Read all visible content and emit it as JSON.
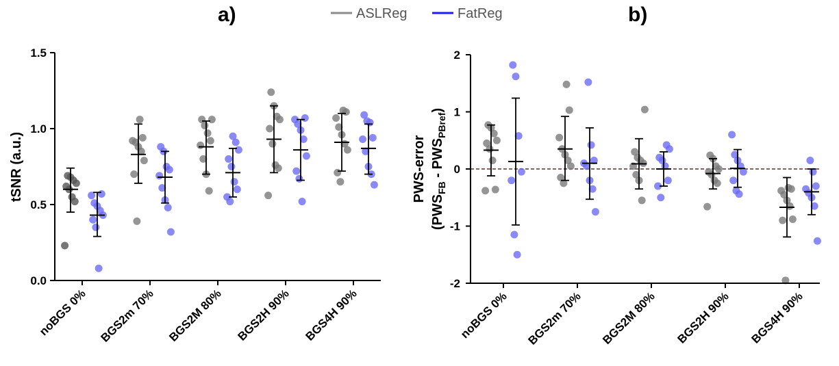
{
  "legend": {
    "items": [
      {
        "label": "ASLReg",
        "color": "#8a8a8a"
      },
      {
        "label": "FatReg",
        "color": "#1a1aff"
      }
    ]
  },
  "colors": {
    "asl_point": "#7a7a7a",
    "fat_point": "#6b6bf5",
    "asl_early_point": "#555555",
    "errorbar": "#000000",
    "zero_line": "#7a1f1f"
  },
  "chart_data": [
    {
      "panel_label": "a)",
      "type": "scatter",
      "ylabel": "tSNR (a.u.)",
      "ylim": [
        0.0,
        1.5
      ],
      "yticks": [
        0.0,
        0.5,
        1.0,
        1.5
      ],
      "ytick_labels": [
        "0.0",
        "0.5",
        "1.0",
        "1.5"
      ],
      "categories": [
        "noBGS  0%",
        "BGS2m  70%",
        "BGS2M  80%",
        "BGS2H  90%",
        "BGS4H  90%"
      ],
      "series": [
        {
          "name": "ASLReg",
          "groups": [
            {
              "points": [
                0.23,
                0.52,
                0.55,
                0.6,
                0.62,
                0.64,
                0.66,
                0.68,
                0.69
              ],
              "mean": 0.6,
              "sd_low": 0.45,
              "sd_high": 0.74
            },
            {
              "points": [
                0.39,
                0.7,
                0.79,
                0.85,
                0.88,
                0.91,
                0.92,
                0.94,
                1.06
              ],
              "mean": 0.83,
              "sd_low": 0.64,
              "sd_high": 1.03
            },
            {
              "points": [
                0.59,
                0.7,
                0.8,
                0.89,
                0.92,
                0.97,
                1.02,
                1.06,
                1.06
              ],
              "mean": 0.88,
              "sd_low": 0.7,
              "sd_high": 1.05
            },
            {
              "points": [
                0.56,
                0.74,
                0.76,
                0.9,
                1.0,
                1.06,
                1.08,
                1.15,
                1.24
              ],
              "mean": 0.93,
              "sd_low": 0.71,
              "sd_high": 1.15
            },
            {
              "points": [
                0.65,
                0.71,
                0.86,
                0.9,
                0.96,
                1.01,
                1.07,
                1.11,
                1.12
              ],
              "mean": 0.91,
              "sd_low": 0.72,
              "sd_high": 1.1
            }
          ]
        },
        {
          "name": "FatReg",
          "groups": [
            {
              "points": [
                0.08,
                0.35,
                0.4,
                0.43,
                0.46,
                0.49,
                0.51,
                0.56,
                0.57
              ],
              "mean": 0.43,
              "sd_low": 0.29,
              "sd_high": 0.58
            },
            {
              "points": [
                0.32,
                0.48,
                0.53,
                0.61,
                0.69,
                0.73,
                0.75,
                0.85,
                0.88
              ],
              "mean": 0.68,
              "sd_low": 0.51,
              "sd_high": 0.85
            },
            {
              "points": [
                0.52,
                0.55,
                0.6,
                0.65,
                0.75,
                0.8,
                0.86,
                0.91,
                0.95
              ],
              "mean": 0.71,
              "sd_low": 0.55,
              "sd_high": 0.87
            },
            {
              "points": [
                0.52,
                0.67,
                0.72,
                0.82,
                0.93,
                0.99,
                1.03,
                1.06,
                1.07
              ],
              "mean": 0.86,
              "sd_low": 0.66,
              "sd_high": 1.06
            },
            {
              "points": [
                0.63,
                0.7,
                0.75,
                0.85,
                0.93,
                0.94,
                1.04,
                1.05,
                1.09
              ],
              "mean": 0.87,
              "sd_low": 0.7,
              "sd_high": 1.03
            }
          ]
        }
      ]
    },
    {
      "panel_label": "b)",
      "type": "scatter",
      "ylabel": "PWS-error",
      "ylabel2_prefix": "(PWS",
      "ylabel2_sub1": "FB",
      "ylabel2_mid": " - PWS",
      "ylabel2_sub2": "PBref",
      "ylabel2_suffix": ")",
      "ylim": [
        -2,
        2
      ],
      "yticks": [
        -2,
        -1,
        0,
        1,
        2
      ],
      "ytick_labels": [
        "-2",
        "-1",
        "0",
        "1",
        "2"
      ],
      "reference_line": 0,
      "categories": [
        "noBGS 0%",
        "BGS2m 70%",
        "BGS2M 80%",
        "BGS2H 90%",
        "BGS4H 90%"
      ],
      "series": [
        {
          "name": "ASLReg",
          "groups": [
            {
              "points": [
                -0.38,
                -0.36,
                0.15,
                0.35,
                0.45,
                0.5,
                0.62,
                0.72,
                0.77
              ],
              "mean": 0.33,
              "sd_low": -0.12,
              "sd_high": 0.77
            },
            {
              "points": [
                -0.25,
                -0.15,
                0.05,
                0.15,
                0.25,
                0.35,
                0.55,
                1.03,
                1.48
              ],
              "mean": 0.35,
              "sd_low": -0.2,
              "sd_high": 0.92
            },
            {
              "points": [
                -0.55,
                -0.2,
                -0.1,
                0.05,
                0.1,
                0.15,
                0.2,
                0.3,
                1.04
              ],
              "mean": 0.09,
              "sd_low": -0.35,
              "sd_high": 0.53
            },
            {
              "points": [
                -0.66,
                -0.25,
                -0.2,
                -0.1,
                -0.05,
                0.0,
                0.05,
                0.18,
                0.24
              ],
              "mean": -0.08,
              "sd_low": -0.35,
              "sd_high": 0.18
            },
            {
              "points": [
                -1.95,
                -0.9,
                -0.88,
                -0.65,
                -0.55,
                -0.45,
                -0.38,
                -0.35,
                -0.33
              ],
              "mean": -0.67,
              "sd_low": -1.19,
              "sd_high": -0.15
            }
          ]
        },
        {
          "name": "FatReg",
          "groups": [
            {
              "points": [
                -1.5,
                -1.15,
                -0.2,
                -0.05,
                0.58,
                1.62,
                1.82
              ],
              "mean": 0.13,
              "sd_low": -0.98,
              "sd_high": 1.24
            },
            {
              "points": [
                -0.75,
                -0.35,
                -0.2,
                0.05,
                0.1,
                0.15,
                0.42,
                1.52
              ],
              "mean": 0.1,
              "sd_low": -0.53,
              "sd_high": 0.72
            },
            {
              "points": [
                -0.5,
                -0.3,
                -0.2,
                0.05,
                0.15,
                0.2,
                0.35,
                0.42
              ],
              "mean": 0.0,
              "sd_low": -0.3,
              "sd_high": 0.3
            },
            {
              "points": [
                -0.44,
                -0.38,
                -0.2,
                -0.05,
                0.05,
                0.15,
                0.25,
                0.6
              ],
              "mean": 0.01,
              "sd_low": -0.32,
              "sd_high": 0.34
            },
            {
              "points": [
                -1.26,
                -0.65,
                -0.5,
                -0.42,
                -0.35,
                -0.3,
                -0.05,
                0.15
              ],
              "mean": -0.4,
              "sd_low": -0.8,
              "sd_high": 0.0
            }
          ]
        }
      ]
    }
  ]
}
